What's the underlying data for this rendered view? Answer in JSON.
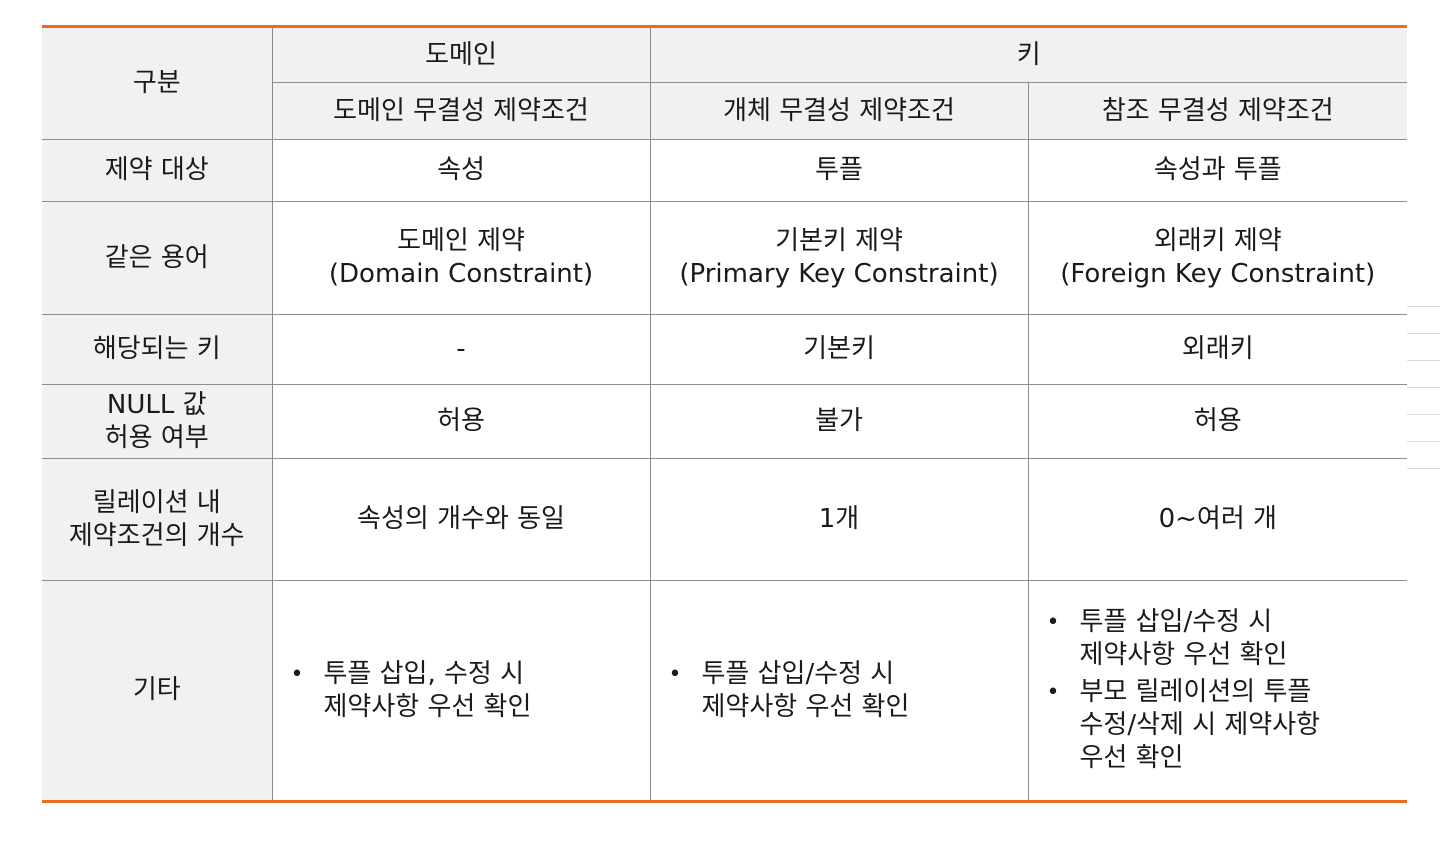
{
  "header": {
    "category": "구분",
    "domain": "도메인",
    "key": "키",
    "domain_constraint": "도메인 무결성 제약조건",
    "entity_constraint": "개체 무결성 제약조건",
    "referential_constraint": "참조 무결성 제약조건"
  },
  "rows": [
    {
      "label": "제약 대상",
      "domain": [
        "속성"
      ],
      "entity": [
        "투플"
      ],
      "referential": [
        "속성과 투플"
      ]
    },
    {
      "label": "같은 용어",
      "domain": [
        "도메인 제약",
        "(Domain Constraint)"
      ],
      "entity": [
        "기본키 제약",
        "(Primary Key Constraint)"
      ],
      "referential": [
        "외래키 제약",
        "(Foreign Key Constraint)"
      ]
    },
    {
      "label": "해당되는 키",
      "domain": [
        "-"
      ],
      "entity": [
        "기본키"
      ],
      "referential": [
        "외래키"
      ]
    },
    {
      "label_lines": [
        "NULL 값",
        "허용 여부"
      ],
      "domain": [
        "허용"
      ],
      "entity": [
        "불가"
      ],
      "referential": [
        "허용"
      ]
    },
    {
      "label_lines": [
        "릴레이션 내",
        "제약조건의 개수"
      ],
      "domain": [
        "속성의 개수와 동일"
      ],
      "entity": [
        "1개"
      ],
      "referential": [
        "0~여러 개"
      ]
    }
  ],
  "etc": {
    "label": "기타",
    "domain": [
      {
        "line1": "투플 삽입, 수정 시",
        "line2": "제약사항 우선 확인"
      }
    ],
    "entity": [
      {
        "line1": "투플 삽입/수정 시",
        "line2": "제약사항 우선 확인"
      }
    ],
    "referential": [
      {
        "line1": "투플 삽입/수정 시",
        "line2": "제약사항 우선 확인"
      },
      {
        "line1": "부모 릴레이션의 투플",
        "line2": "수정/삭제 시 제약사항",
        "line3": "우선 확인"
      }
    ]
  }
}
